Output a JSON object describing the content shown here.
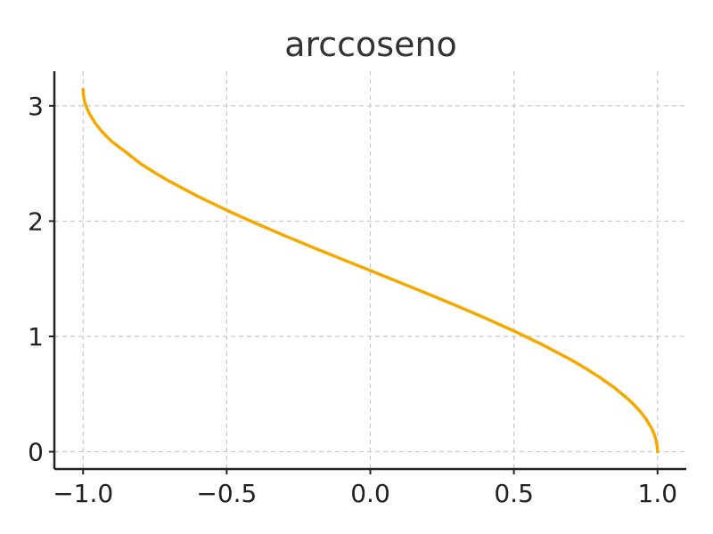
{
  "chart_data": {
    "type": "line",
    "title": "arccoseno",
    "xlabel": "",
    "ylabel": "",
    "xlim": [
      -1.1,
      1.1
    ],
    "ylim": [
      -0.15,
      3.3
    ],
    "x_ticks": [
      -1.0,
      -0.5,
      0.0,
      0.5,
      1.0
    ],
    "x_tick_labels": [
      "−1.0",
      "−0.5",
      "0.0",
      "0.5",
      "1.0"
    ],
    "y_ticks": [
      0,
      1,
      2,
      3
    ],
    "y_tick_labels": [
      "0",
      "1",
      "2",
      "3"
    ],
    "grid": true,
    "series": [
      {
        "color": "#f5a800",
        "x": [
          -1.0,
          -0.999,
          -0.995,
          -0.99,
          -0.98,
          -0.96,
          -0.94,
          -0.92,
          -0.9,
          -0.85,
          -0.8,
          -0.75,
          -0.7,
          -0.6,
          -0.5,
          -0.4,
          -0.3,
          -0.2,
          -0.1,
          0.0,
          0.1,
          0.2,
          0.3,
          0.4,
          0.5,
          0.6,
          0.7,
          0.75,
          0.8,
          0.85,
          0.9,
          0.92,
          0.94,
          0.96,
          0.98,
          0.99,
          0.995,
          0.999,
          1.0
        ],
        "y": [
          3.1416,
          3.0969,
          3.0414,
          3.0003,
          2.9413,
          2.8578,
          2.7934,
          2.7389,
          2.6906,
          2.5963,
          2.4981,
          2.4189,
          2.3462,
          2.2143,
          2.0944,
          1.9823,
          1.8755,
          1.7722,
          1.671,
          1.5708,
          1.4706,
          1.3694,
          1.2661,
          1.1593,
          1.0472,
          0.9273,
          0.7954,
          0.7227,
          0.6435,
          0.5548,
          0.451,
          0.4027,
          0.3482,
          0.2838,
          0.2003,
          0.1415,
          0.1,
          0.0447,
          0.0
        ]
      }
    ]
  }
}
